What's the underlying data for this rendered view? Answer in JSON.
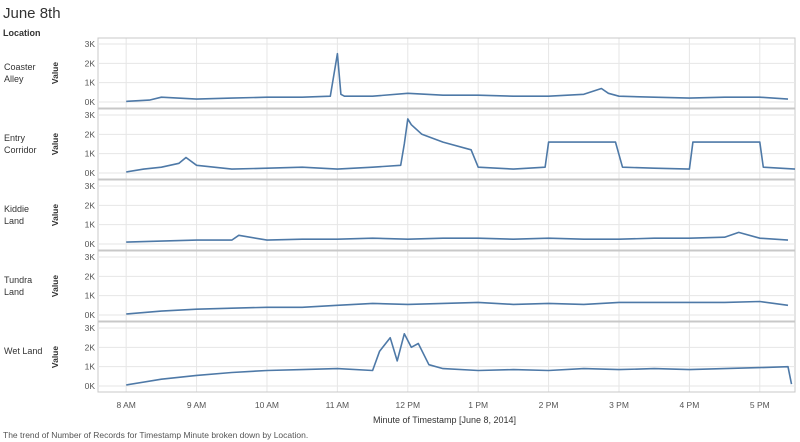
{
  "page": {
    "title": "June 8th",
    "facet_header": "Location",
    "caption": "The trend of Number of Records for Timestamp Minute broken down by Location."
  },
  "colors": {
    "line": "#4e79a7",
    "grid": "#e6e6e6",
    "border": "#c8c8c8"
  },
  "chart_data": {
    "type": "line",
    "xlabel": "Minute of Timestamp [June 8, 2014]",
    "ylabel": "Value",
    "x_ticks": [
      "8 AM",
      "9 AM",
      "10 AM",
      "11 AM",
      "12 PM",
      "1 PM",
      "2 PM",
      "3 PM",
      "4 PM",
      "5 PM"
    ],
    "y_ticks": [
      "0K",
      "1K",
      "2K",
      "3K"
    ],
    "ylim": [
      0,
      3000
    ],
    "xlim_hours": [
      7.6,
      17.5
    ],
    "grid": true,
    "series": [
      {
        "name": "Coaster Alley",
        "label_lines": [
          "Coaster",
          "Alley"
        ],
        "x": [
          8.0,
          8.33,
          8.5,
          9.0,
          9.5,
          10.0,
          10.5,
          10.9,
          11.0,
          11.05,
          11.1,
          11.5,
          12.0,
          12.5,
          13.0,
          13.5,
          14.0,
          14.5,
          14.75,
          14.85,
          15.0,
          15.5,
          16.0,
          16.5,
          17.0,
          17.4
        ],
        "values": [
          30,
          100,
          250,
          150,
          200,
          250,
          250,
          300,
          2500,
          400,
          300,
          300,
          450,
          350,
          350,
          300,
          300,
          400,
          700,
          450,
          300,
          250,
          200,
          250,
          250,
          150
        ]
      },
      {
        "name": "Entry Corridor",
        "label_lines": [
          "Entry",
          "Corridor"
        ],
        "x": [
          8.0,
          8.25,
          8.5,
          8.75,
          8.85,
          9.0,
          9.5,
          10.0,
          10.5,
          11.0,
          11.5,
          11.9,
          11.95,
          12.0,
          12.05,
          12.2,
          12.5,
          12.9,
          13.0,
          13.5,
          13.95,
          14.0,
          14.5,
          14.95,
          15.05,
          15.5,
          16.0,
          16.05,
          16.5,
          17.0,
          17.05,
          17.5
        ],
        "values": [
          50,
          200,
          300,
          500,
          800,
          400,
          200,
          250,
          300,
          200,
          300,
          400,
          1500,
          2800,
          2500,
          2000,
          1600,
          1200,
          300,
          200,
          300,
          1600,
          1600,
          1600,
          300,
          250,
          200,
          1600,
          1600,
          1600,
          300,
          200
        ]
      },
      {
        "name": "Kiddie Land",
        "label_lines": [
          "Kiddie",
          "Land"
        ],
        "x": [
          8.0,
          8.5,
          9.0,
          9.5,
          9.6,
          10.0,
          10.5,
          11.0,
          11.5,
          12.0,
          12.5,
          13.0,
          13.5,
          14.0,
          14.5,
          15.0,
          15.5,
          16.0,
          16.5,
          16.7,
          17.0,
          17.4
        ],
        "values": [
          100,
          150,
          200,
          200,
          450,
          200,
          250,
          250,
          300,
          250,
          300,
          300,
          250,
          300,
          250,
          250,
          300,
          300,
          350,
          600,
          300,
          200
        ]
      },
      {
        "name": "Tundra Land",
        "label_lines": [
          "Tundra",
          "Land"
        ],
        "x": [
          8.0,
          8.5,
          9.0,
          9.5,
          10.0,
          10.5,
          11.0,
          11.5,
          12.0,
          12.5,
          13.0,
          13.5,
          14.0,
          14.5,
          15.0,
          15.5,
          16.0,
          16.5,
          17.0,
          17.4
        ],
        "values": [
          50,
          200,
          300,
          350,
          400,
          400,
          500,
          600,
          550,
          600,
          650,
          550,
          600,
          550,
          650,
          650,
          650,
          650,
          700,
          500
        ]
      },
      {
        "name": "Wet Land",
        "label_lines": [
          "Wet Land"
        ],
        "x": [
          8.0,
          8.5,
          9.0,
          9.5,
          10.0,
          10.5,
          11.0,
          11.5,
          11.6,
          11.75,
          11.85,
          11.95,
          12.05,
          12.15,
          12.3,
          12.5,
          13.0,
          13.5,
          14.0,
          14.5,
          15.0,
          15.5,
          16.0,
          16.5,
          17.0,
          17.4,
          17.45
        ],
        "values": [
          50,
          350,
          550,
          700,
          800,
          850,
          900,
          800,
          1800,
          2500,
          1300,
          2700,
          2000,
          2200,
          1100,
          900,
          800,
          850,
          800,
          900,
          850,
          900,
          850,
          900,
          950,
          1000,
          100
        ]
      }
    ]
  }
}
